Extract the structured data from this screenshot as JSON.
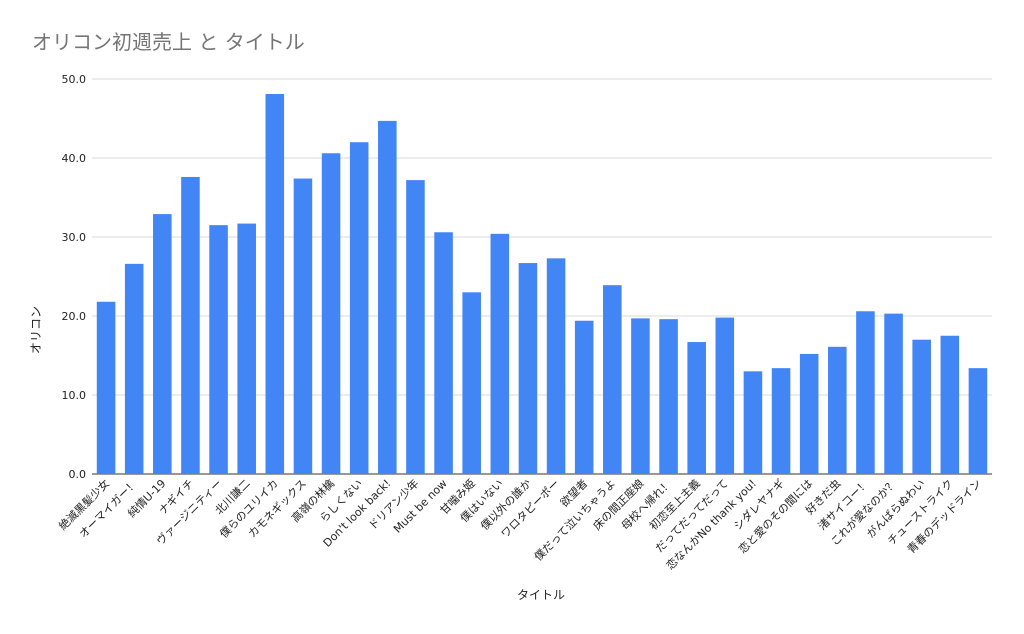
{
  "chart_data": {
    "type": "bar",
    "title": "オリコン初週売上 と タイトル",
    "xlabel": "タイトル",
    "ylabel": "オリコン",
    "ylim": [
      0,
      50
    ],
    "yticks": [
      "0.0",
      "10.0",
      "20.0",
      "30.0",
      "40.0",
      "50.0"
    ],
    "grid": true,
    "bar_color": "#4285F4",
    "categories": [
      "絶滅黒髪少女",
      "オーマイガー！",
      "純情U-19",
      "ナギイチ",
      "ヴァージニティー",
      "北川謙二",
      "僕らのユリイカ",
      "カモネギックス",
      "高嶺の林檎",
      "らしくない",
      "Don't look back!",
      "ドリアン少年",
      "Must be now",
      "甘噛み姫",
      "僕はいない",
      "僕以外の誰か",
      "ワロタピーポー",
      "欲望者",
      "僕だって泣いちゃうよ",
      "床の間正座娘",
      "母校へ帰れ！",
      "初恋至上主義",
      "だってだってだって",
      "恋なんかNo thank you!",
      "シダレヤナギ",
      "恋と愛のその間には",
      "好きだ虫",
      "渚サイコー！",
      "これが愛なのか？",
      "がんばらぬわい",
      "チューストライク",
      "青春のデッドライン"
    ],
    "values": [
      21.8,
      26.6,
      32.9,
      37.6,
      31.5,
      31.7,
      48.1,
      37.4,
      40.6,
      42.0,
      44.7,
      37.2,
      30.6,
      23.0,
      30.4,
      26.7,
      27.3,
      19.4,
      23.9,
      19.7,
      19.6,
      16.7,
      19.8,
      13.0,
      13.4,
      15.2,
      16.1,
      20.6,
      20.3,
      17.0,
      17.5,
      13.4
    ]
  }
}
